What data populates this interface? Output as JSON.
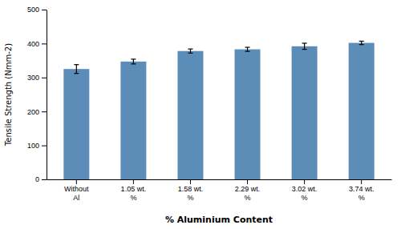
{
  "chart_data": {
    "type": "bar",
    "categories": [
      "Without\nAl",
      "1.05 wt.\n%",
      "1.58 wt.\n%",
      "2.29 wt.\n%",
      "3.02 wt.\n%",
      "3.74 wt.\n%"
    ],
    "values": [
      325,
      347,
      378,
      383,
      392,
      402
    ],
    "errors": [
      13,
      7,
      6,
      6,
      9,
      5
    ],
    "color": "#5b8db8",
    "xlabel": "% Aluminium Content",
    "ylabel": "Tensile Strength (Nmm-2)",
    "ylim": [
      0,
      500
    ],
    "yticks": [
      0,
      100,
      200,
      300,
      400,
      500
    ],
    "grid": false
  }
}
